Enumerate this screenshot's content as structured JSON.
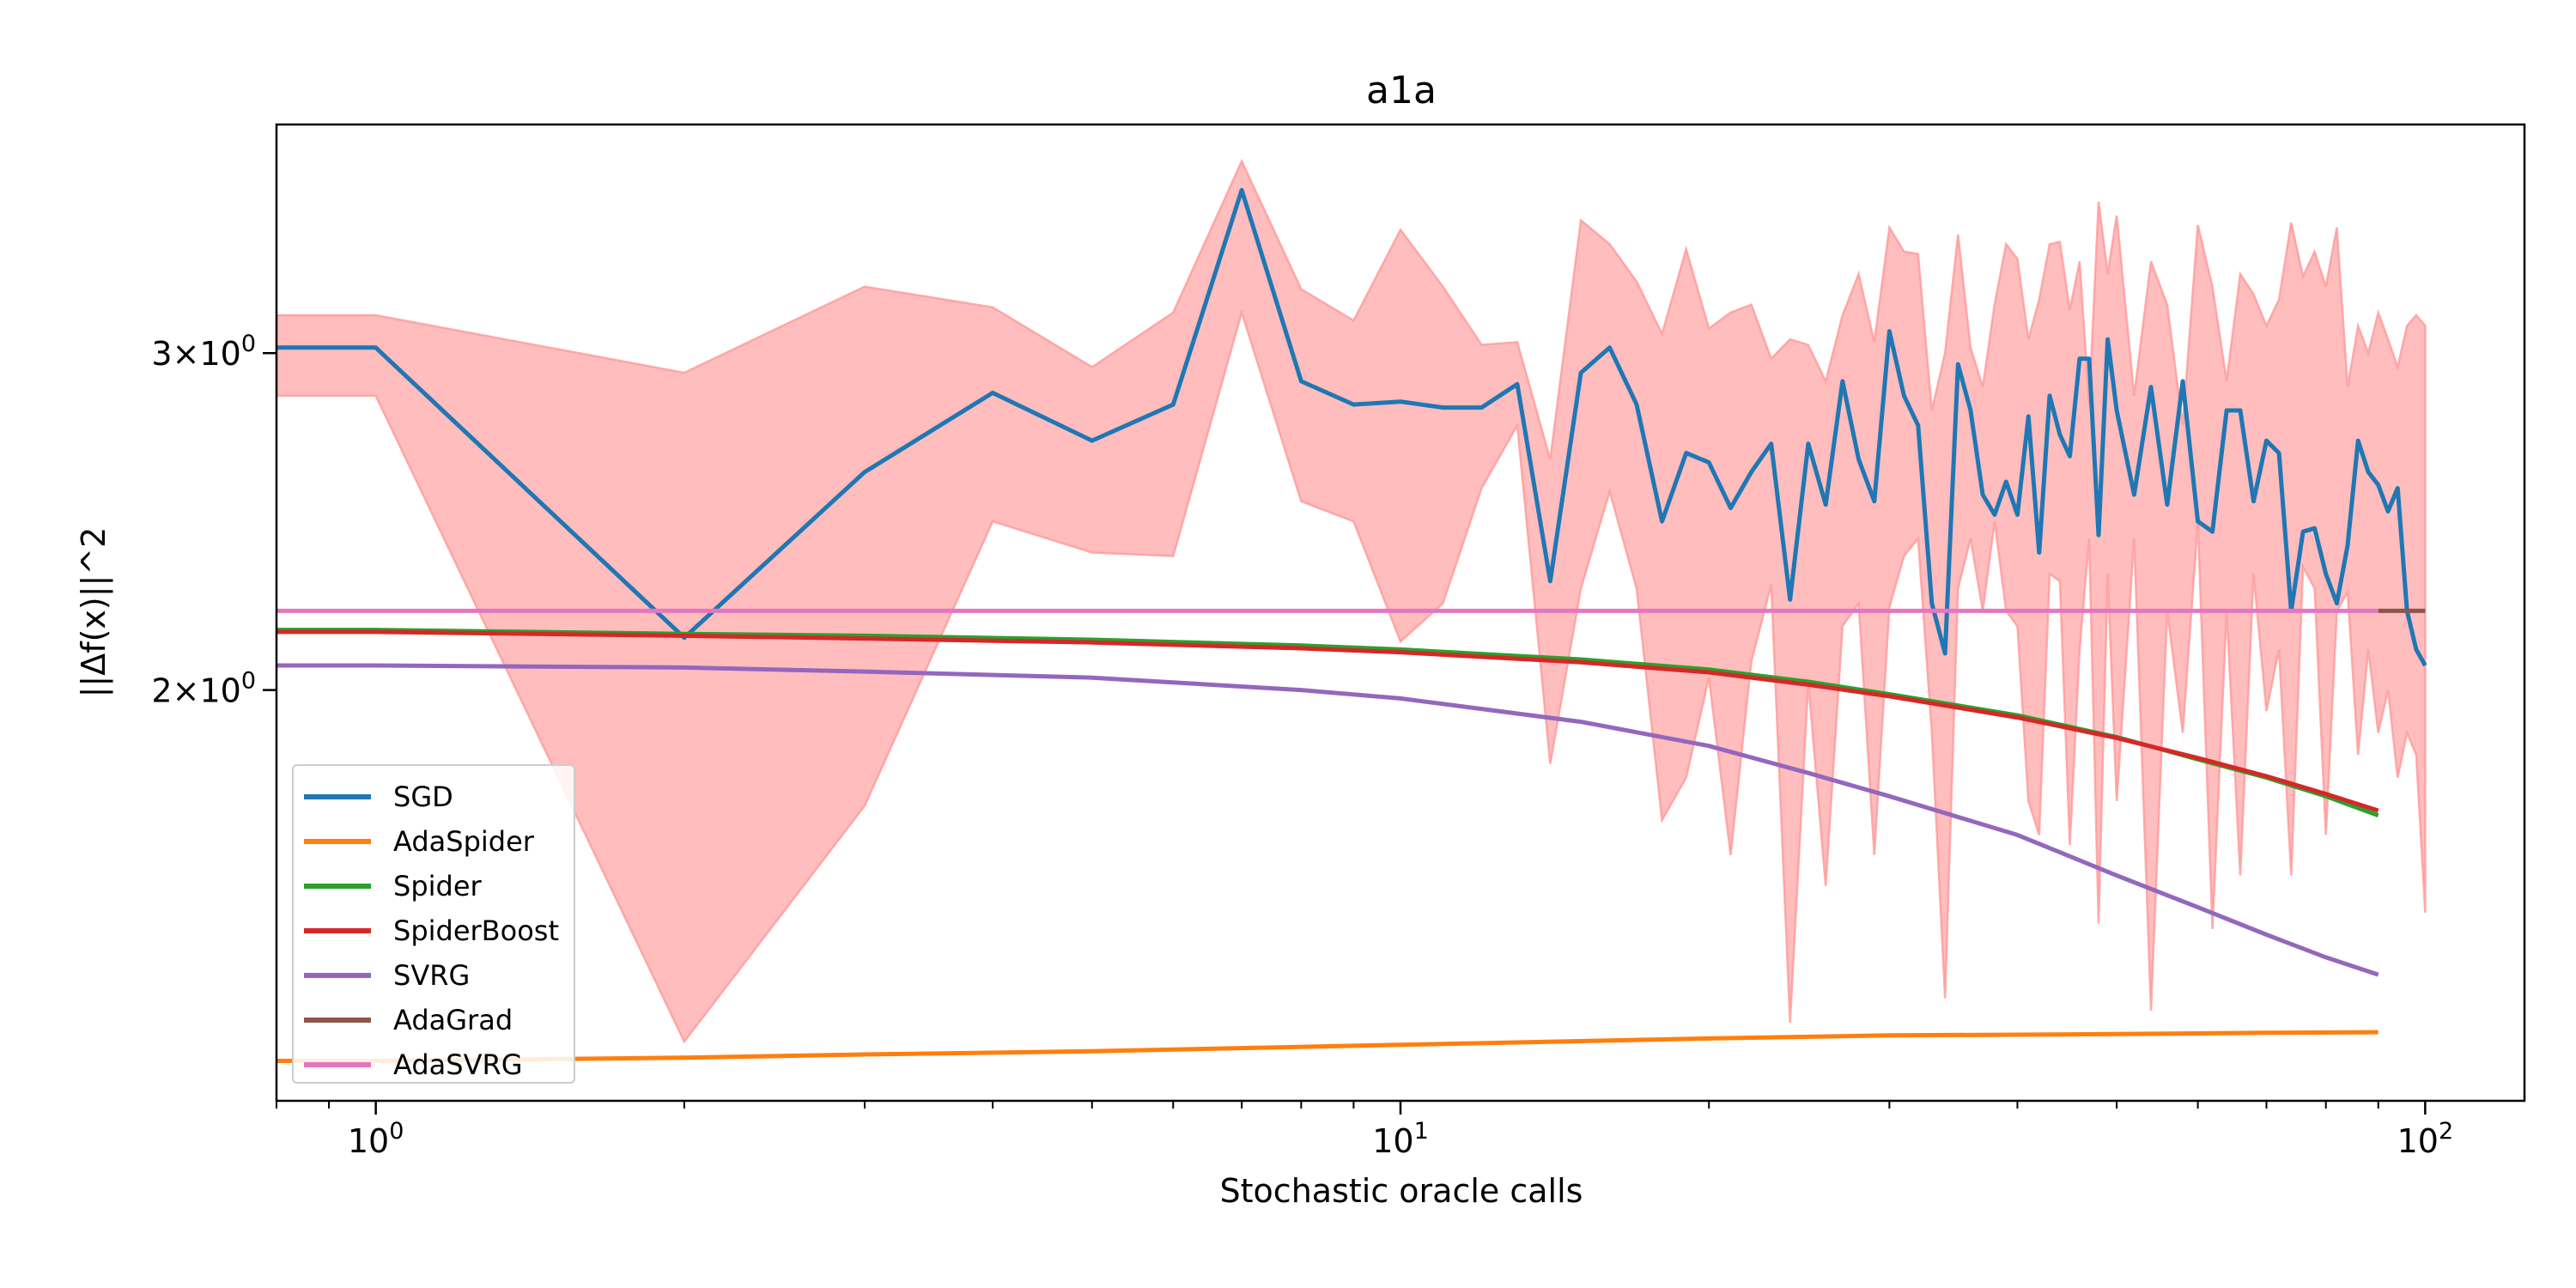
{
  "chart_data": {
    "type": "line",
    "title": "a1a",
    "xlabel": "Stochastic oracle calls",
    "ylabel": "||Δf(x)||^2",
    "xscale": "log",
    "yscale": "log",
    "xlim": [
      0.8,
      125
    ],
    "ylim": [
      1.22,
      3.95
    ],
    "x_ticks": [
      {
        "value": 1,
        "base": "10",
        "exp": "0"
      },
      {
        "value": 10,
        "base": "10",
        "exp": "1"
      },
      {
        "value": 100,
        "base": "10",
        "exp": "2"
      }
    ],
    "y_ticks": [
      {
        "value": 2,
        "mant": "2",
        "base": "10",
        "exp": "0"
      },
      {
        "value": 3,
        "mant": "3",
        "base": "10",
        "exp": "0"
      }
    ],
    "legend_position": "lower-left",
    "grid": false,
    "band": {
      "color": "#ff9999",
      "fill_opacity": 0.65,
      "x": [
        0.8,
        1,
        2,
        3,
        4,
        5,
        6,
        7,
        8,
        9,
        10,
        11,
        12,
        13,
        14,
        15,
        16,
        17,
        18,
        19,
        20,
        21,
        22,
        23,
        24,
        25,
        26,
        27,
        28,
        29,
        30,
        31,
        32,
        33,
        34,
        35,
        36,
        37,
        38,
        39,
        40,
        41,
        42,
        43,
        44,
        45,
        46,
        47,
        48,
        49,
        50,
        52,
        54,
        56,
        58,
        60,
        62,
        64,
        66,
        68,
        70,
        72,
        74,
        76,
        78,
        80,
        82,
        84,
        86,
        88,
        90,
        92,
        94,
        96,
        98,
        100
      ],
      "upper": [
        3.14,
        3.14,
        2.93,
        3.25,
        3.17,
        2.95,
        3.15,
        3.78,
        3.24,
        3.12,
        3.48,
        3.25,
        3.03,
        3.04,
        2.64,
        3.52,
        3.42,
        3.27,
        3.07,
        3.4,
        3.09,
        3.15,
        3.18,
        2.98,
        3.05,
        3.03,
        2.9,
        3.14,
        3.3,
        3.04,
        3.49,
        3.39,
        3.38,
        2.8,
        3.0,
        3.46,
        3.02,
        2.88,
        3.18,
        3.42,
        3.36,
        3.05,
        3.2,
        3.42,
        3.43,
        3.16,
        3.35,
        2.82,
        3.6,
        3.3,
        3.54,
        2.85,
        3.35,
        3.18,
        2.75,
        3.5,
        3.25,
        2.9,
        3.3,
        3.22,
        3.1,
        3.2,
        3.51,
        3.29,
        3.39,
        3.25,
        3.49,
        2.88,
        3.1,
        3.0,
        3.15,
        3.05,
        2.95,
        3.1,
        3.14,
        3.1
      ],
      "lower": [
        2.85,
        2.85,
        1.31,
        1.74,
        2.45,
        2.36,
        2.35,
        3.15,
        2.51,
        2.45,
        2.12,
        2.22,
        2.55,
        2.75,
        1.83,
        2.26,
        2.54,
        2.26,
        1.71,
        1.8,
        2.03,
        1.64,
        2.07,
        2.27,
        1.34,
        2.02,
        1.58,
        2.16,
        2.22,
        1.64,
        2.21,
        2.35,
        2.4,
        1.9,
        1.38,
        2.26,
        2.4,
        2.2,
        2.45,
        2.2,
        2.16,
        1.75,
        1.68,
        2.3,
        2.28,
        1.66,
        2.1,
        2.4,
        1.51,
        2.3,
        1.75,
        2.4,
        1.36,
        2.2,
        1.9,
        2.45,
        1.5,
        2.2,
        1.6,
        2.3,
        1.95,
        2.1,
        1.6,
        2.32,
        2.26,
        1.68,
        2.2,
        2.25,
        1.85,
        2.1,
        1.9,
        2.0,
        1.8,
        1.9,
        1.85,
        1.53
      ]
    },
    "series": [
      {
        "name": "SGD",
        "color": "#1f77b4",
        "x": [
          0.8,
          1,
          2,
          3,
          4,
          5,
          6,
          7,
          8,
          9,
          10,
          11,
          12,
          13,
          14,
          15,
          16,
          17,
          18,
          19,
          20,
          21,
          22,
          23,
          24,
          25,
          26,
          27,
          28,
          29,
          30,
          31,
          32,
          33,
          34,
          35,
          36,
          37,
          38,
          39,
          40,
          41,
          42,
          43,
          44,
          45,
          46,
          47,
          48,
          49,
          50,
          52,
          54,
          56,
          58,
          60,
          62,
          64,
          66,
          68,
          70,
          72,
          74,
          76,
          78,
          80,
          82,
          84,
          86,
          88,
          90,
          92,
          94,
          96,
          98,
          100
        ],
        "y": [
          3.02,
          3.02,
          2.13,
          2.6,
          2.86,
          2.7,
          2.82,
          3.65,
          2.9,
          2.82,
          2.83,
          2.81,
          2.81,
          2.89,
          2.28,
          2.93,
          3.02,
          2.82,
          2.45,
          2.66,
          2.63,
          2.49,
          2.6,
          2.69,
          2.23,
          2.69,
          2.5,
          2.9,
          2.64,
          2.51,
          3.08,
          2.85,
          2.75,
          2.22,
          2.09,
          2.96,
          2.8,
          2.53,
          2.47,
          2.57,
          2.47,
          2.78,
          2.36,
          2.85,
          2.72,
          2.65,
          2.98,
          2.98,
          2.41,
          3.05,
          2.8,
          2.53,
          2.88,
          2.5,
          2.9,
          2.45,
          2.42,
          2.8,
          2.8,
          2.51,
          2.7,
          2.66,
          2.2,
          2.42,
          2.43,
          2.3,
          2.22,
          2.38,
          2.7,
          2.6,
          2.56,
          2.48,
          2.55,
          2.2,
          2.1,
          2.06
        ]
      },
      {
        "name": "AdaSpider",
        "color": "#ff7f0e",
        "x": [
          0.8,
          1,
          2,
          3,
          5,
          10,
          20,
          30,
          50,
          70,
          90
        ],
        "y": [
          1.28,
          1.28,
          1.285,
          1.29,
          1.295,
          1.305,
          1.315,
          1.32,
          1.322,
          1.324,
          1.325
        ]
      },
      {
        "name": "Spider",
        "color": "#2ca02c",
        "x": [
          0.8,
          1,
          2,
          3,
          5,
          8,
          10,
          15,
          20,
          25,
          30,
          40,
          50,
          60,
          70,
          80,
          90
        ],
        "y": [
          2.15,
          2.15,
          2.14,
          2.135,
          2.125,
          2.11,
          2.1,
          2.075,
          2.05,
          2.02,
          1.99,
          1.94,
          1.89,
          1.84,
          1.8,
          1.76,
          1.72
        ]
      },
      {
        "name": "SpiderBoost",
        "color": "#d62728",
        "x": [
          0.8,
          1,
          2,
          3,
          5,
          8,
          10,
          15,
          20,
          25,
          30,
          40,
          50,
          60,
          70,
          80,
          90
        ],
        "y": [
          2.145,
          2.145,
          2.135,
          2.128,
          2.118,
          2.103,
          2.093,
          2.068,
          2.043,
          2.013,
          1.985,
          1.935,
          1.888,
          1.843,
          1.803,
          1.765,
          1.73
        ]
      },
      {
        "name": "SVRG",
        "color": "#9467bd",
        "x": [
          0.8,
          1,
          2,
          3,
          5,
          8,
          10,
          15,
          20,
          25,
          30,
          40,
          50,
          60,
          70,
          80,
          90
        ],
        "y": [
          2.06,
          2.06,
          2.055,
          2.045,
          2.03,
          2.0,
          1.98,
          1.925,
          1.87,
          1.81,
          1.76,
          1.68,
          1.6,
          1.54,
          1.49,
          1.45,
          1.42
        ]
      },
      {
        "name": "AdaGrad",
        "color": "#8c564b",
        "x": [
          90,
          100
        ],
        "y": [
          2.2,
          2.2
        ]
      },
      {
        "name": "AdaSVRG",
        "color": "#e377c2",
        "x": [
          0.8,
          1,
          10,
          50,
          90
        ],
        "y": [
          2.2,
          2.2,
          2.2,
          2.2,
          2.2
        ]
      }
    ]
  }
}
